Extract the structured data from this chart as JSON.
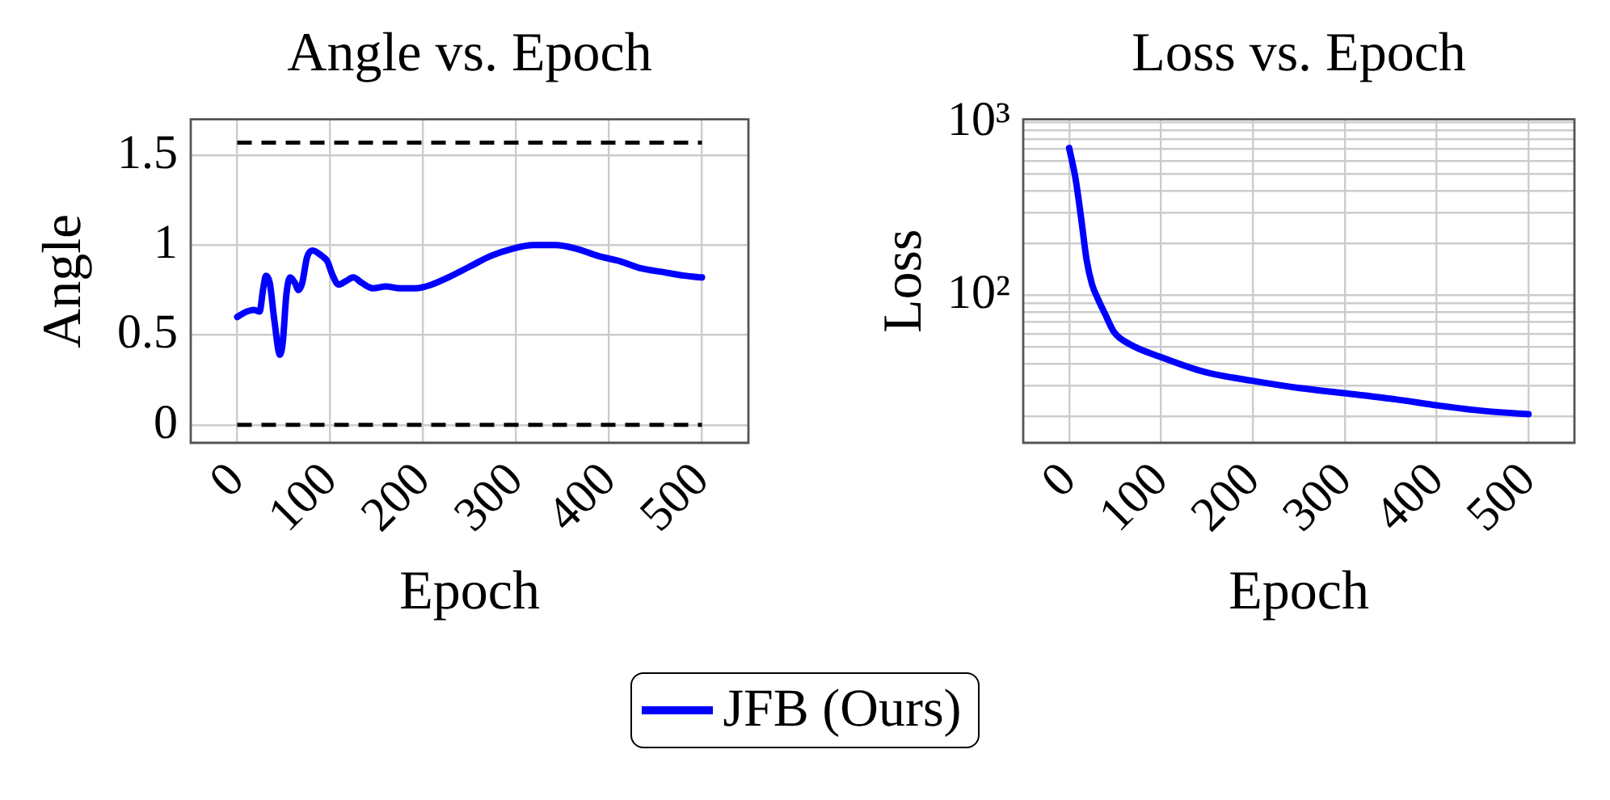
{
  "chart_data": [
    {
      "type": "line",
      "title": "Angle vs. Epoch",
      "xlabel": "Epoch",
      "ylabel": "Angle",
      "x": [
        0,
        10,
        18,
        24,
        28,
        31,
        35,
        40,
        46,
        49,
        53,
        57,
        62,
        66,
        70,
        75,
        81,
        91,
        97,
        102,
        109,
        117,
        125,
        134,
        146,
        160,
        175,
        192,
        209,
        227,
        250,
        273,
        296,
        319,
        342,
        365,
        388,
        412,
        435,
        458,
        481,
        500
      ],
      "series": [
        {
          "name": "JFB (Ours)",
          "color": "#0000ff",
          "values": [
            0.6,
            0.63,
            0.64,
            0.63,
            0.76,
            0.83,
            0.79,
            0.58,
            0.39,
            0.46,
            0.73,
            0.82,
            0.79,
            0.75,
            0.79,
            0.93,
            0.97,
            0.94,
            0.91,
            0.84,
            0.78,
            0.8,
            0.82,
            0.79,
            0.76,
            0.77,
            0.76,
            0.76,
            0.78,
            0.82,
            0.88,
            0.94,
            0.98,
            1.0,
            1.0,
            0.98,
            0.94,
            0.91,
            0.87,
            0.85,
            0.83,
            0.82
          ]
        }
      ],
      "xlim": [
        -50,
        550
      ],
      "xticks": [
        0,
        100,
        200,
        300,
        400,
        500
      ],
      "ylim": [
        -0.1,
        1.7
      ],
      "yticks": [
        0,
        0.5,
        1,
        1.5
      ],
      "ref_lines": [
        {
          "axis": "y",
          "value": 0,
          "color": "#000000",
          "line_style": "dashed"
        },
        {
          "axis": "y",
          "value": 1.57,
          "color": "#000000",
          "line_style": "dashed"
        }
      ],
      "grid": true,
      "legend": "bottom"
    },
    {
      "type": "line",
      "title": "Loss vs. Epoch",
      "xlabel": "Epoch",
      "ylabel": "Loss",
      "x": [
        0,
        7,
        13,
        19,
        25,
        31,
        39,
        49,
        66,
        99,
        147,
        199,
        251,
        303,
        355,
        402,
        448,
        500
      ],
      "series": [
        {
          "name": "JFB (Ours)",
          "color": "#0000ff",
          "values": [
            710,
            470,
            280,
            160,
            115,
            96,
            78,
            61,
            52,
            44,
            36,
            32,
            29,
            27,
            25,
            23,
            21.5,
            20.5
          ]
        }
      ],
      "xlim": [
        -50,
        550
      ],
      "xticks": [
        0,
        100,
        200,
        300,
        400,
        500
      ],
      "ylim": [
        14,
        1040
      ],
      "yticks": [
        {
          "value": 20,
          "label": null
        },
        {
          "value": 30,
          "label": null
        },
        {
          "value": 40,
          "label": null
        },
        {
          "value": 50,
          "label": null
        },
        {
          "value": 60,
          "label": null
        },
        {
          "value": 70,
          "label": null
        },
        {
          "value": 80,
          "label": null
        },
        {
          "value": 90,
          "label": null
        },
        {
          "value": 100,
          "label": "10²"
        },
        {
          "value": 200,
          "label": null
        },
        {
          "value": 300,
          "label": null
        },
        {
          "value": 400,
          "label": null
        },
        {
          "value": 500,
          "label": null
        },
        {
          "value": 600,
          "label": null
        },
        {
          "value": 700,
          "label": null
        },
        {
          "value": 800,
          "label": null
        },
        {
          "value": 900,
          "label": null
        },
        {
          "value": 1000,
          "label": "10³"
        }
      ],
      "log": true,
      "grid": true,
      "legend": "bottom"
    }
  ]
}
